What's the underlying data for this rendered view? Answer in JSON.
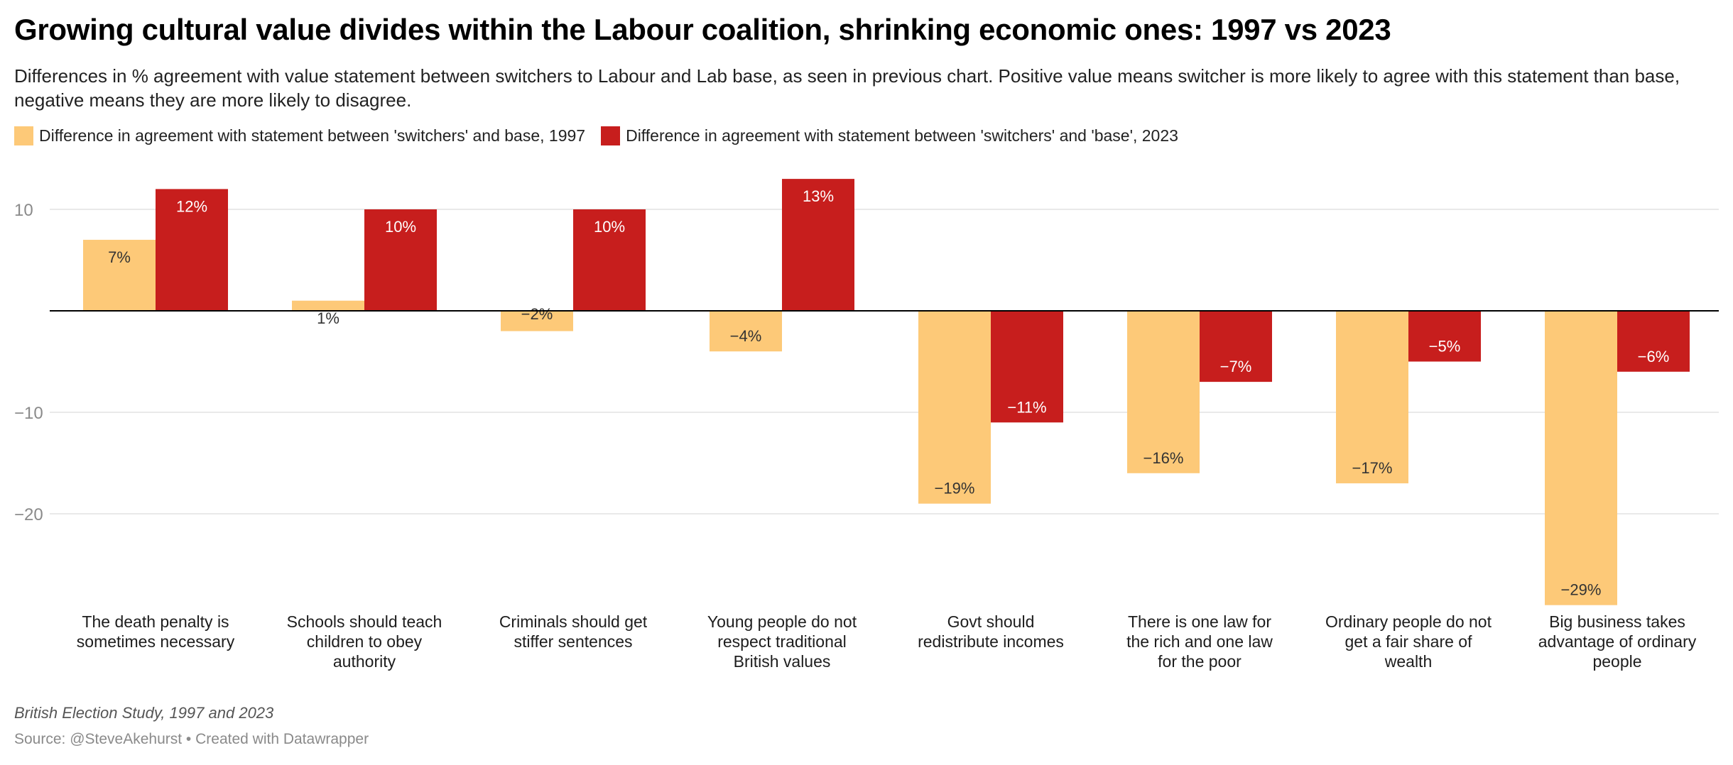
{
  "title": "Growing cultural value divides within the Labour coalition, shrinking economic ones: 1997 vs 2023",
  "subtitle": "Differences in % agreement with value statement between switchers to Labour and Lab base, as seen in previous chart. Positive value means switcher is more likely to agree with this statement than base, negative means they are more likely to disagree.",
  "note": "British Election Study, 1997 and 2023",
  "source": "Source: @SteveAkehurst • Created with Datawrapper",
  "colors": {
    "series_1997": "#fdc978",
    "series_2023": "#c71e1d"
  },
  "chart_data": {
    "type": "bar",
    "categories": [
      "The death penalty is sometimes necessary",
      "Schools should teach children to obey authority",
      "Criminals should get stiffer sentences",
      "Young people do not respect traditional British values",
      "Govt should redistribute incomes",
      "There is one law for the rich and one law for the poor",
      "Ordinary people do not get a fair share of wealth",
      "Big business takes advantage of ordinary people"
    ],
    "series": [
      {
        "name": "Difference in agreement with statement between 'switchers' and base, 1997",
        "values": [
          7,
          1,
          -2,
          -4,
          -19,
          -16,
          -17,
          -29
        ],
        "labels": [
          "7%",
          "1%",
          "−2%",
          "−4%",
          "−19%",
          "−16%",
          "−17%",
          "−29%"
        ]
      },
      {
        "name": "Difference in agreement with statement between 'switchers' and 'base', 2023",
        "values": [
          12,
          10,
          10,
          13,
          -11,
          -7,
          -5,
          -6
        ],
        "labels": [
          "12%",
          "10%",
          "10%",
          "13%",
          "−11%",
          "−7%",
          "−5%",
          "−6%"
        ]
      }
    ],
    "yticks": [
      10,
      -10,
      -20
    ],
    "ytick_labels": [
      "10",
      "−10",
      "−20"
    ],
    "ylim": [
      -29,
      13
    ],
    "grid": true,
    "legend": "top-left"
  }
}
